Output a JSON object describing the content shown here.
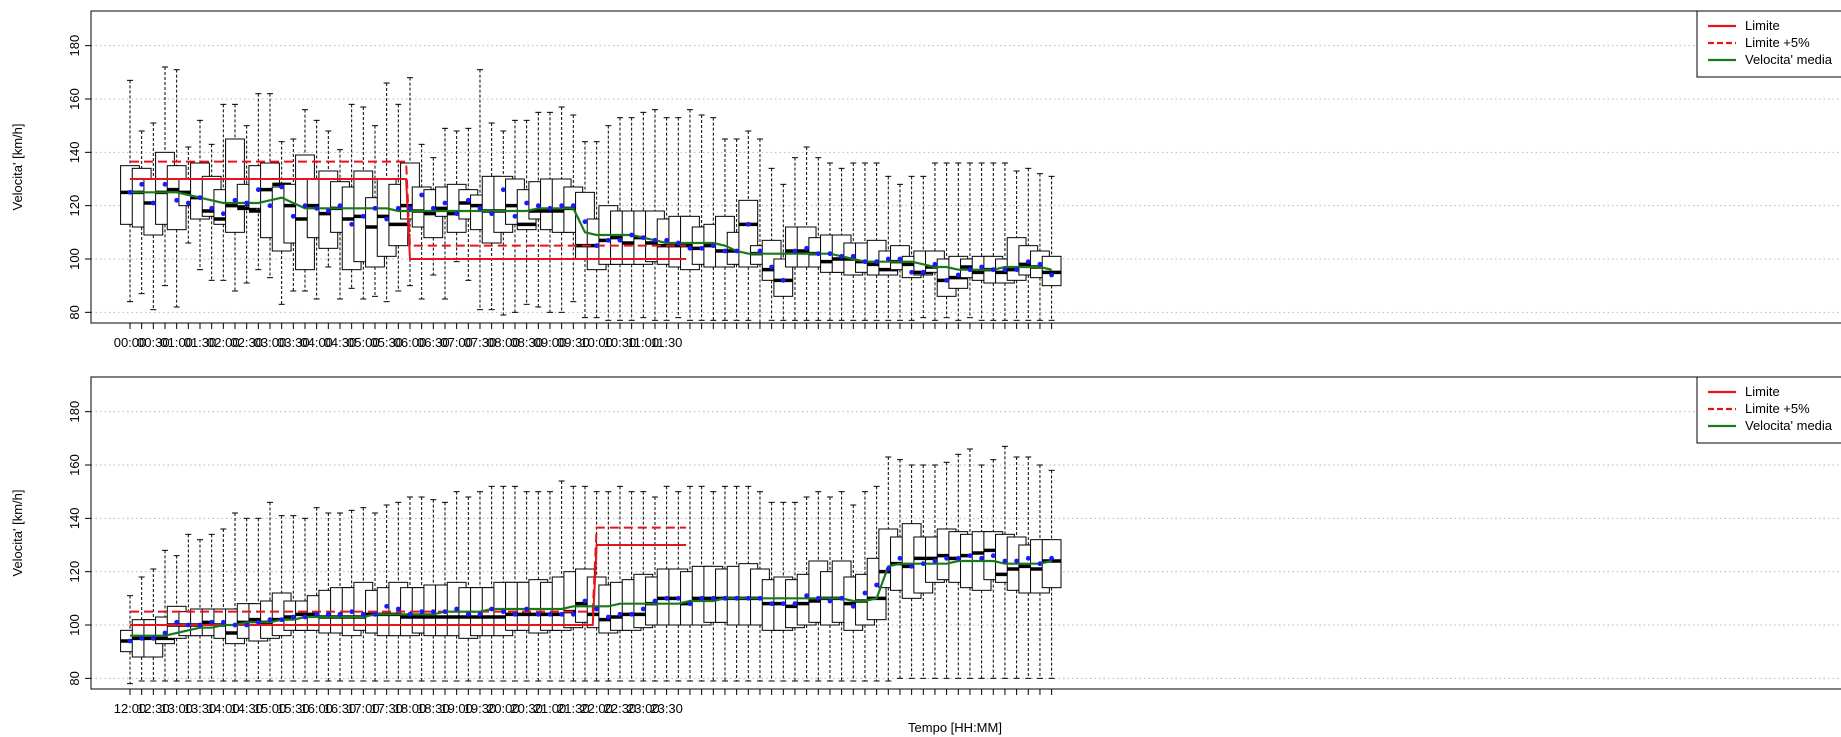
{
  "figure": {
    "xlabel": "Tempo [HH:MM]"
  },
  "chart_data": [
    {
      "type": "box",
      "ylabel": "Velocita' [km/h]",
      "ylim": [
        76,
        193
      ],
      "yticks": [
        80,
        100,
        120,
        140,
        160,
        180
      ],
      "xtick_labels": [
        "00:00",
        "00:30",
        "01:00",
        "01:30",
        "02:00",
        "02:30",
        "03:00",
        "03:30",
        "04:00",
        "04:30",
        "05:00",
        "05:30",
        "06:00",
        "06:30",
        "07:00",
        "07:30",
        "08:00",
        "08:30",
        "09:00",
        "09:30",
        "10:00",
        "10:30",
        "11:00",
        "11:30"
      ],
      "grid": true,
      "legend": {
        "placement": "top-right",
        "entries": [
          {
            "label": "Limite",
            "style": "solid",
            "color": "#e8141c"
          },
          {
            "label": "Limite +5%",
            "style": "dashed",
            "color": "#e8141c"
          },
          {
            "label": "Velocita' media",
            "style": "solid",
            "color": "#1a7a1a"
          }
        ]
      },
      "speed_limit": [
        {
          "from": "00:00",
          "to": "05:55",
          "value": 130
        },
        {
          "from": "06:00",
          "to": "11:55",
          "value": 100
        }
      ],
      "limit_plus_5": [
        {
          "from": "00:00",
          "to": "05:55",
          "value": 136.5
        },
        {
          "from": "06:00",
          "to": "11:55",
          "value": 105
        }
      ],
      "median": [
        125,
        125,
        121,
        125,
        126,
        125,
        123,
        118,
        115,
        120,
        119,
        118,
        126,
        128,
        120,
        115,
        120,
        117,
        119,
        115,
        116,
        112,
        116,
        113,
        120,
        118,
        117,
        119,
        117,
        121,
        120,
        118,
        118,
        120,
        113,
        118,
        118,
        118,
        119,
        105,
        105,
        107,
        108,
        106,
        108,
        106,
        105,
        105,
        105,
        104,
        105,
        103,
        103,
        113,
        102,
        96,
        92,
        103,
        103,
        102,
        99,
        100,
        100,
        99,
        98,
        96,
        99,
        98,
        95,
        97,
        92,
        93,
        97,
        95,
        96,
        95,
        96,
        98,
        97,
        95
      ],
      "mean_line": [
        125,
        125,
        125,
        125,
        125,
        124,
        123,
        122,
        121,
        121,
        121,
        121,
        122,
        123,
        121,
        119,
        119,
        119,
        119,
        119,
        119,
        119,
        119,
        118,
        118,
        118,
        118,
        118,
        118,
        118,
        118,
        118,
        118,
        118,
        118,
        119,
        119,
        119,
        119,
        110,
        109,
        109,
        109,
        109,
        108,
        107,
        106,
        106,
        106,
        106,
        106,
        105,
        103,
        102,
        102,
        102,
        102,
        102,
        102,
        102,
        102,
        101,
        100,
        99,
        99,
        99,
        99,
        99,
        98,
        97,
        97,
        96,
        96,
        96,
        96,
        97,
        97,
        97,
        97,
        96
      ],
      "mean_points": [
        125,
        128,
        121,
        128,
        122,
        121,
        123,
        119,
        117,
        122,
        121,
        126,
        120,
        127,
        116,
        120,
        119,
        118,
        120,
        113,
        116,
        119,
        115,
        119,
        119,
        124,
        119,
        121,
        117,
        122,
        119,
        117,
        126,
        116,
        121,
        120,
        119,
        120,
        120,
        114,
        105,
        107,
        107,
        109,
        108,
        107,
        107,
        106,
        104,
        104,
        105,
        103,
        103,
        113,
        103,
        97,
        92,
        103,
        104,
        102,
        102,
        101,
        101,
        99,
        99,
        100,
        100,
        95,
        95,
        98,
        92,
        94,
        96,
        97,
        96,
        96,
        96,
        99,
        98,
        94
      ],
      "q1": [
        113,
        112,
        109,
        113,
        111,
        120,
        115,
        116,
        113,
        110,
        120,
        119,
        108,
        103,
        106,
        96,
        108,
        104,
        110,
        96,
        99,
        97,
        101,
        105,
        115,
        112,
        108,
        116,
        110,
        115,
        111,
        106,
        110,
        113,
        111,
        115,
        111,
        110,
        110,
        100,
        96,
        98,
        98,
        98,
        98,
        99,
        98,
        97,
        96,
        98,
        97,
        97,
        98,
        97,
        98,
        92,
        86,
        97,
        97,
        97,
        95,
        95,
        94,
        95,
        94,
        94,
        96,
        93,
        94,
        95,
        86,
        89,
        93,
        92,
        91,
        91,
        92,
        94,
        93,
        90
      ],
      "q3": [
        135,
        134,
        130,
        140,
        135,
        130,
        136,
        131,
        126,
        145,
        128,
        135,
        136,
        127,
        128,
        139,
        130,
        133,
        129,
        127,
        133,
        123,
        130,
        128,
        136,
        127,
        126,
        127,
        128,
        126,
        124,
        131,
        131,
        130,
        126,
        129,
        130,
        130,
        127,
        125,
        115,
        120,
        118,
        118,
        118,
        118,
        115,
        116,
        116,
        112,
        113,
        116,
        110,
        122,
        105,
        107,
        100,
        112,
        112,
        108,
        109,
        109,
        106,
        106,
        107,
        103,
        105,
        101,
        103,
        103,
        100,
        101,
        100,
        101,
        101,
        100,
        108,
        105,
        103,
        101
      ],
      "whisker_low": [
        84,
        87,
        81,
        90,
        82,
        106,
        96,
        92,
        92,
        88,
        91,
        96,
        93,
        83,
        88,
        88,
        85,
        97,
        85,
        89,
        85,
        86,
        84,
        88,
        90,
        85,
        94,
        85,
        99,
        92,
        81,
        81,
        79,
        80,
        83,
        82,
        80,
        80,
        84,
        78,
        78,
        77,
        77,
        77,
        78,
        77,
        77,
        78,
        77,
        77,
        77,
        77,
        77,
        77,
        76,
        77,
        77,
        77,
        77,
        77,
        77,
        77,
        77,
        77,
        77,
        77,
        77,
        77,
        78,
        77,
        78,
        77,
        78,
        77,
        77,
        77,
        77,
        77,
        77,
        77
      ],
      "whisker_high": [
        167,
        148,
        151,
        172,
        171,
        142,
        152,
        143,
        158,
        158,
        150,
        162,
        162,
        144,
        145,
        156,
        152,
        148,
        141,
        158,
        157,
        150,
        166,
        158,
        168,
        143,
        138,
        149,
        148,
        149,
        171,
        151,
        148,
        152,
        152,
        155,
        155,
        157,
        154,
        144,
        144,
        150,
        153,
        153,
        155,
        156,
        153,
        153,
        156,
        154,
        153,
        145,
        145,
        148,
        145,
        134,
        128,
        138,
        142,
        138,
        136,
        134,
        136,
        136,
        136,
        131,
        128,
        131,
        131,
        136,
        136,
        136,
        136,
        136,
        136,
        136,
        133,
        134,
        132,
        131
      ]
    },
    {
      "type": "box",
      "ylabel": "Velocita' [km/h]",
      "ylim": [
        76,
        193
      ],
      "yticks": [
        80,
        100,
        120,
        140,
        160,
        180
      ],
      "xtick_labels": [
        "12:00",
        "12:30",
        "13:00",
        "13:30",
        "14:00",
        "14:30",
        "15:00",
        "15:30",
        "16:00",
        "16:30",
        "17:00",
        "17:30",
        "18:00",
        "18:30",
        "19:00",
        "19:30",
        "20:00",
        "20:30",
        "21:00",
        "21:30",
        "22:00",
        "22:30",
        "23:00",
        "23:30"
      ],
      "grid": true,
      "legend": {
        "placement": "top-right",
        "entries": [
          {
            "label": "Limite",
            "style": "solid",
            "color": "#e8141c"
          },
          {
            "label": "Limite +5%",
            "style": "dashed",
            "color": "#e8141c"
          },
          {
            "label": "Velocita' media",
            "style": "solid",
            "color": "#1a7a1a"
          }
        ]
      },
      "speed_limit": [
        {
          "from": "12:00",
          "to": "21:55",
          "value": 100
        },
        {
          "from": "22:00",
          "to": "23:55",
          "value": 130
        }
      ],
      "limit_plus_5": [
        {
          "from": "12:00",
          "to": "21:55",
          "value": 105
        },
        {
          "from": "22:00",
          "to": "23:55",
          "value": 136.5
        }
      ],
      "median": [
        94,
        95,
        95,
        95,
        100,
        100,
        100,
        101,
        100,
        97,
        101,
        102,
        101,
        102,
        103,
        104,
        104,
        103,
        103,
        103,
        103,
        104,
        104,
        104,
        103,
        103,
        103,
        103,
        103,
        103,
        103,
        103,
        103,
        104,
        104,
        104,
        104,
        104,
        105,
        108,
        104,
        102,
        103,
        104,
        104,
        108,
        110,
        110,
        108,
        110,
        110,
        110,
        110,
        110,
        110,
        108,
        108,
        107,
        108,
        109,
        110,
        110,
        108,
        109,
        110,
        120,
        123,
        122,
        125,
        125,
        126,
        125,
        126,
        127,
        128,
        119,
        121,
        122,
        121,
        124
      ],
      "mean_line": [
        96,
        96,
        96,
        96,
        97,
        98,
        99,
        99,
        100,
        100,
        101,
        101,
        101,
        102,
        102,
        103,
        103,
        103,
        103,
        103,
        103,
        104,
        104,
        104,
        104,
        104,
        104,
        105,
        105,
        105,
        105,
        106,
        106,
        106,
        106,
        106,
        106,
        106,
        107,
        107,
        107,
        107,
        108,
        108,
        108,
        108,
        108,
        108,
        109,
        109,
        109,
        110,
        110,
        110,
        110,
        110,
        110,
        110,
        110,
        110,
        110,
        110,
        109,
        109,
        110,
        122,
        123,
        123,
        123,
        123,
        123,
        124,
        124,
        124,
        124,
        123,
        123,
        123,
        123,
        124
      ],
      "mean_points": [
        94,
        95,
        95,
        97,
        101,
        100,
        100,
        101,
        101,
        100,
        100,
        101,
        102,
        102,
        103,
        103,
        104,
        104,
        104,
        105,
        104,
        104,
        107,
        106,
        104,
        105,
        105,
        105,
        106,
        104,
        104,
        106,
        105,
        104,
        106,
        104,
        104,
        104,
        104,
        109,
        106,
        103,
        104,
        104,
        106,
        109,
        110,
        110,
        108,
        110,
        110,
        110,
        110,
        110,
        110,
        108,
        108,
        108,
        111,
        110,
        109,
        110,
        107,
        112,
        115,
        121,
        125,
        122,
        123,
        124,
        125,
        125,
        126,
        125,
        126,
        124,
        124,
        125,
        123,
        125
      ],
      "q1": [
        90,
        88,
        88,
        93,
        95,
        96,
        96,
        96,
        95,
        93,
        95,
        94,
        95,
        96,
        98,
        98,
        98,
        97,
        97,
        96,
        98,
        97,
        96,
        96,
        96,
        97,
        96,
        96,
        96,
        95,
        96,
        96,
        96,
        98,
        98,
        97,
        98,
        98,
        99,
        101,
        99,
        97,
        98,
        98,
        99,
        100,
        100,
        100,
        100,
        100,
        101,
        101,
        100,
        100,
        100,
        98,
        98,
        99,
        100,
        101,
        100,
        101,
        98,
        100,
        102,
        114,
        113,
        110,
        112,
        116,
        117,
        116,
        114,
        113,
        117,
        116,
        113,
        112,
        112,
        114
      ],
      "q3": [
        98,
        102,
        102,
        103,
        107,
        105,
        106,
        106,
        106,
        106,
        108,
        108,
        109,
        112,
        109,
        109,
        111,
        113,
        114,
        114,
        116,
        113,
        114,
        116,
        114,
        114,
        115,
        115,
        116,
        114,
        114,
        114,
        116,
        116,
        116,
        117,
        116,
        118,
        120,
        121,
        118,
        115,
        116,
        117,
        119,
        118,
        121,
        121,
        120,
        122,
        122,
        121,
        122,
        123,
        121,
        117,
        118,
        117,
        119,
        124,
        120,
        124,
        118,
        119,
        125,
        136,
        133,
        138,
        133,
        133,
        136,
        135,
        134,
        135,
        135,
        134,
        133,
        130,
        132,
        132
      ],
      "whisker_low": [
        78,
        79,
        79,
        79,
        79,
        79,
        79,
        79,
        79,
        79,
        79,
        79,
        79,
        79,
        79,
        79,
        79,
        79,
        79,
        79,
        79,
        79,
        79,
        79,
        79,
        79,
        79,
        79,
        79,
        79,
        79,
        79,
        79,
        79,
        79,
        79,
        79,
        79,
        79,
        79,
        79,
        79,
        79,
        79,
        79,
        79,
        79,
        79,
        79,
        79,
        79,
        79,
        79,
        79,
        79,
        79,
        79,
        79,
        79,
        79,
        79,
        79,
        79,
        79,
        79,
        79,
        80,
        80,
        80,
        80,
        80,
        80,
        80,
        80,
        80,
        80,
        80,
        80,
        80,
        80
      ],
      "whisker_high": [
        111,
        118,
        121,
        128,
        126,
        134,
        132,
        134,
        136,
        142,
        140,
        140,
        146,
        141,
        141,
        140,
        144,
        142,
        142,
        143,
        144,
        142,
        145,
        146,
        148,
        148,
        147,
        146,
        150,
        148,
        150,
        152,
        152,
        152,
        150,
        150,
        150,
        154,
        152,
        152,
        150,
        150,
        152,
        150,
        150,
        148,
        152,
        150,
        152,
        152,
        150,
        152,
        152,
        152,
        150,
        146,
        146,
        146,
        148,
        150,
        148,
        150,
        145,
        150,
        152,
        163,
        162,
        160,
        160,
        160,
        161,
        164,
        166,
        160,
        162,
        167,
        163,
        163,
        160,
        158
      ]
    }
  ]
}
